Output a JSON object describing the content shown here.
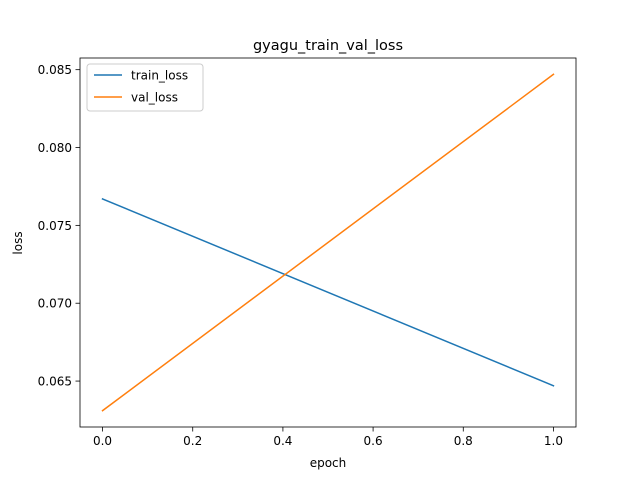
{
  "chart_data": {
    "type": "line",
    "title": "gyagu_train_val_loss",
    "xlabel": "epoch",
    "ylabel": "loss",
    "xlim": [
      -0.05,
      1.05
    ],
    "ylim": [
      0.06205,
      0.08575
    ],
    "xticks": [
      0.0,
      0.2,
      0.4,
      0.6,
      0.8,
      1.0
    ],
    "xtick_labels": [
      "0.0",
      "0.2",
      "0.4",
      "0.6",
      "0.8",
      "1.0"
    ],
    "yticks": [
      0.065,
      0.07,
      0.075,
      0.08,
      0.085
    ],
    "ytick_labels": [
      "0.065",
      "0.070",
      "0.075",
      "0.080",
      "0.085"
    ],
    "grid": false,
    "legend_position": "upper-left",
    "series": [
      {
        "name": "train_loss",
        "color": "#1f77b4",
        "x": [
          0,
          1
        ],
        "values": [
          0.0767,
          0.0647
        ]
      },
      {
        "name": "val_loss",
        "color": "#ff7f0e",
        "x": [
          0,
          1
        ],
        "values": [
          0.0631,
          0.0847
        ]
      }
    ]
  }
}
